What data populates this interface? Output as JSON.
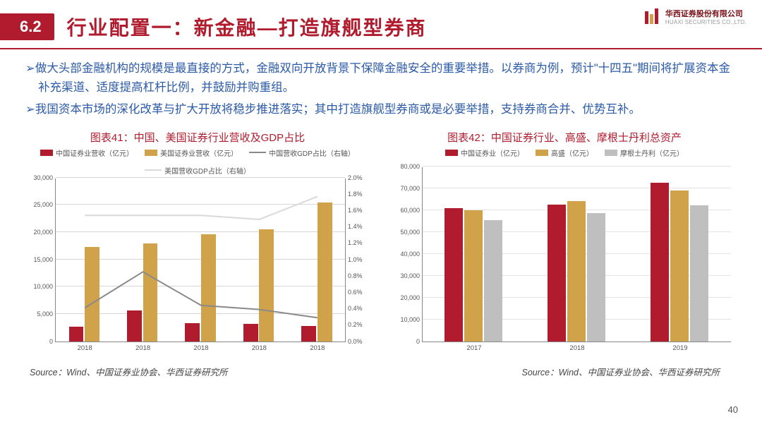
{
  "header": {
    "section": "6.2",
    "title": "行业配置一：新金融—打造旗舰型券商"
  },
  "logo": {
    "cn": "华西证券股份有限公司",
    "en": "HUAXI SECURITIES CO.,LTD.",
    "bar_colors": [
      "#b01c2e",
      "#d0a24a"
    ]
  },
  "bullets": [
    "➢做大头部金融机构的规模是最直接的方式，金融双向开放背景下保障金融安全的重要举措。以券商为例，预计\"十四五\"期间将扩展资本金补充渠道、适度提高杠杆比例，并鼓励并购重组。",
    "➢我国资本市场的深化改革与扩大开放将稳步推进落实；其中打造旗舰型券商或是必要举措，支持券商合并、优势互补。"
  ],
  "chart41": {
    "title": "图表41：中国、美国证券行业营收及GDP占比",
    "type": "bar+line-dual-axis",
    "legend": [
      {
        "label": "中国证券业营收（亿元）",
        "kind": "bar",
        "color": "#b01c2e"
      },
      {
        "label": "美国证券业营收（亿元）",
        "kind": "bar",
        "color": "#d0a24a"
      },
      {
        "label": "中国营收GDP占比（右轴）",
        "kind": "line",
        "color": "#8a8a8a"
      },
      {
        "label": "美国营收GDP占比（右轴）",
        "kind": "line",
        "color": "#d9d9d9"
      }
    ],
    "categories": [
      "2018",
      "2018",
      "2018",
      "2018",
      "2018"
    ],
    "series_bar": [
      {
        "name": "china_rev",
        "color": "#b01c2e",
        "values": [
          2700,
          5700,
          3300,
          3200,
          2800
        ]
      },
      {
        "name": "us_rev",
        "color": "#d0a24a",
        "values": [
          17300,
          17900,
          19600,
          20500,
          25400
        ]
      }
    ],
    "series_line": [
      {
        "name": "china_gdp_ratio",
        "color": "#8a8a8a",
        "values": [
          0.42,
          0.86,
          0.45,
          0.4,
          0.3
        ]
      },
      {
        "name": "us_gdp_ratio",
        "color": "#d9d9d9",
        "values": [
          1.55,
          1.55,
          1.55,
          1.5,
          1.78
        ]
      }
    ],
    "y_left": {
      "min": 0,
      "max": 30000,
      "step": 5000
    },
    "y_right": {
      "min": 0,
      "max": 2.0,
      "step": 0.2,
      "fmt": "pct"
    },
    "plot_bg": "#ffffff",
    "grid_color": "#d6d6d6",
    "bar_group_width": 0.55,
    "label_fontsize": 9
  },
  "chart42": {
    "title": "图表42：中国证券行业、高盛、摩根士丹利总资产",
    "type": "bar",
    "legend": [
      {
        "label": "中国证券业（亿元）",
        "kind": "bar",
        "color": "#b01c2e"
      },
      {
        "label": "高盛（亿元）",
        "kind": "bar",
        "color": "#d0a24a"
      },
      {
        "label": "摩根士丹利（亿元）",
        "kind": "bar",
        "color": "#bfbfbf"
      }
    ],
    "categories": [
      "2017",
      "2018",
      "2019"
    ],
    "series_bar": [
      {
        "name": "china",
        "color": "#b01c2e",
        "values": [
          61000,
          62500,
          72500
        ]
      },
      {
        "name": "gs",
        "color": "#d0a24a",
        "values": [
          60000,
          64000,
          69000
        ]
      },
      {
        "name": "ms",
        "color": "#bfbfbf",
        "values": [
          55500,
          58500,
          62000
        ]
      }
    ],
    "y_left": {
      "min": 0,
      "max": 80000,
      "step": 10000
    },
    "plot_bg": "#ffffff",
    "grid_color": "#e3e3e3",
    "bar_group_width": 0.58,
    "label_fontsize": 9
  },
  "source_left": "Source：Wind、中国证券业协会、华西证券研究所",
  "source_right": "Source：Wind、中国证券业协会、华西证券研究所",
  "page_num": "40"
}
